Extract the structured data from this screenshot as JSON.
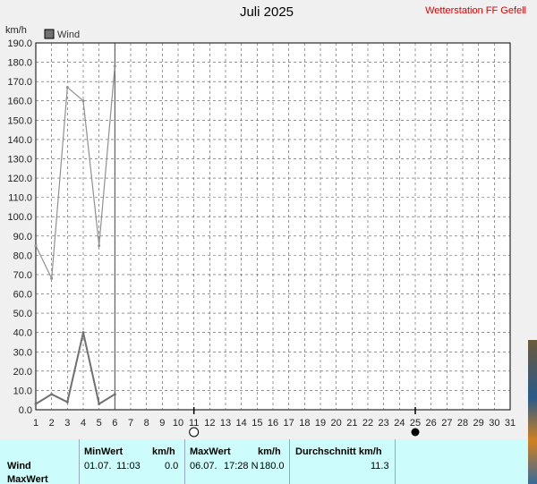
{
  "title": "Juli 2025",
  "station": "Wetterstation FF Gefell",
  "unit": "km/h",
  "chart_data": {
    "type": "line",
    "title": "Juli 2025",
    "ylabel": "km/h",
    "xlabel": "",
    "legend_position": "top-left",
    "grid": true,
    "ylim": [
      0,
      190
    ],
    "xlim": [
      1,
      31
    ],
    "y_ticks": [
      "0.0",
      "10.0",
      "20.0",
      "30.0",
      "40.0",
      "50.0",
      "60.0",
      "70.0",
      "80.0",
      "90.0",
      "100.0",
      "110.0",
      "120.0",
      "130.0",
      "140.0",
      "150.0",
      "160.0",
      "170.0",
      "180.0",
      "190.0"
    ],
    "x_ticks": [
      "1",
      "2",
      "3",
      "4",
      "5",
      "6",
      "7",
      "8",
      "9",
      "10",
      "11",
      "12",
      "13",
      "14",
      "15",
      "16",
      "17",
      "18",
      "19",
      "20",
      "21",
      "22",
      "23",
      "24",
      "25",
      "26",
      "27",
      "28",
      "29",
      "30",
      "31"
    ],
    "current_day": 6,
    "series": [
      {
        "name": "Wind",
        "role": "max",
        "color": "#909090",
        "x": [
          1,
          2,
          3,
          4,
          5,
          6
        ],
        "values": [
          85,
          68,
          167,
          160,
          85,
          178
        ]
      },
      {
        "name": "",
        "role": "avg",
        "color": "#707070",
        "x": [
          1,
          2,
          3,
          4,
          5,
          6
        ],
        "values": [
          3,
          8,
          4,
          40,
          3,
          8
        ]
      }
    ],
    "markers": [
      {
        "day": 11,
        "symbol": "new-moon-outline"
      },
      {
        "day": 25,
        "symbol": "full-moon-filled"
      }
    ]
  },
  "stats": {
    "headers": {
      "min": "MinWert",
      "min_unit": "km/h",
      "max": "MaxWert",
      "max_unit": "km/h",
      "avg": "Durchschnitt km/h"
    },
    "row": {
      "label": "Wind",
      "min_date": "01.07.",
      "min_time": "11:03",
      "min_val": "0.0",
      "max_date": "06.07.",
      "max_time": "17:28 N",
      "max_val": "180.0",
      "avg_val": "11.3"
    },
    "row2_label": "MaxWert"
  }
}
